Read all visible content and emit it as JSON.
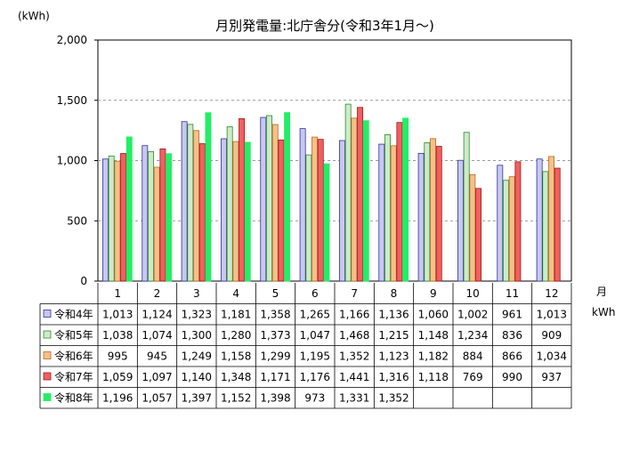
{
  "chart_data": {
    "type": "bar",
    "title": "月別発電量:北庁舎分(令和3年1月～)",
    "ylabel": "(kWh)",
    "xlabel": "月",
    "table_unit": "kWh",
    "ylim": [
      0,
      2000
    ],
    "yticks": [
      "0",
      "500",
      "1,000",
      "1,500",
      "2,000"
    ],
    "ytick_values": [
      0,
      500,
      1000,
      1500,
      2000
    ],
    "grid": true,
    "categories": [
      "1",
      "2",
      "3",
      "4",
      "5",
      "6",
      "7",
      "8",
      "9",
      "10",
      "11",
      "12"
    ],
    "series": [
      {
        "name": "令和4年",
        "fill": "#c8c8ee",
        "stroke": "#3030a0",
        "values": [
          1013,
          1124,
          1323,
          1181,
          1358,
          1265,
          1166,
          1136,
          1060,
          1002,
          961,
          1013
        ],
        "labels": [
          "1,013",
          "1,124",
          "1,323",
          "1,181",
          "1,358",
          "1,265",
          "1,166",
          "1,136",
          "1,060",
          "1,002",
          "961",
          "1,013"
        ]
      },
      {
        "name": "令和5年",
        "fill": "#cdebc8",
        "stroke": "#2c8a2c",
        "values": [
          1038,
          1074,
          1300,
          1280,
          1373,
          1047,
          1468,
          1215,
          1148,
          1234,
          836,
          909
        ],
        "labels": [
          "1,038",
          "1,074",
          "1,300",
          "1,280",
          "1,373",
          "1,047",
          "1,468",
          "1,215",
          "1,148",
          "1,234",
          "836",
          "909"
        ]
      },
      {
        "name": "令和6年",
        "fill": "#f5c08a",
        "stroke": "#b86a1e",
        "values": [
          995,
          945,
          1249,
          1158,
          1299,
          1195,
          1352,
          1123,
          1182,
          884,
          866,
          1034
        ],
        "labels": [
          "995",
          "945",
          "1,249",
          "1,158",
          "1,299",
          "1,195",
          "1,352",
          "1,123",
          "1,182",
          "884",
          "866",
          "1,034"
        ]
      },
      {
        "name": "令和7年",
        "fill": "#f06060",
        "stroke": "#a01818",
        "values": [
          1059,
          1097,
          1140,
          1348,
          1171,
          1176,
          1441,
          1316,
          1118,
          769,
          990,
          937
        ],
        "labels": [
          "1,059",
          "1,097",
          "1,140",
          "1,348",
          "1,171",
          "1,176",
          "1,441",
          "1,316",
          "1,118",
          "769",
          "990",
          "937"
        ]
      },
      {
        "name": "令和8年",
        "fill": "#22ee66",
        "stroke": "#22ee66",
        "values": [
          1196,
          1057,
          1397,
          1152,
          1398,
          973,
          1331,
          1352,
          null,
          null,
          null,
          null
        ],
        "labels": [
          "1,196",
          "1,057",
          "1,397",
          "1,152",
          "1,398",
          "973",
          "1,331",
          "1,352",
          "",
          "",
          "",
          ""
        ]
      }
    ]
  }
}
